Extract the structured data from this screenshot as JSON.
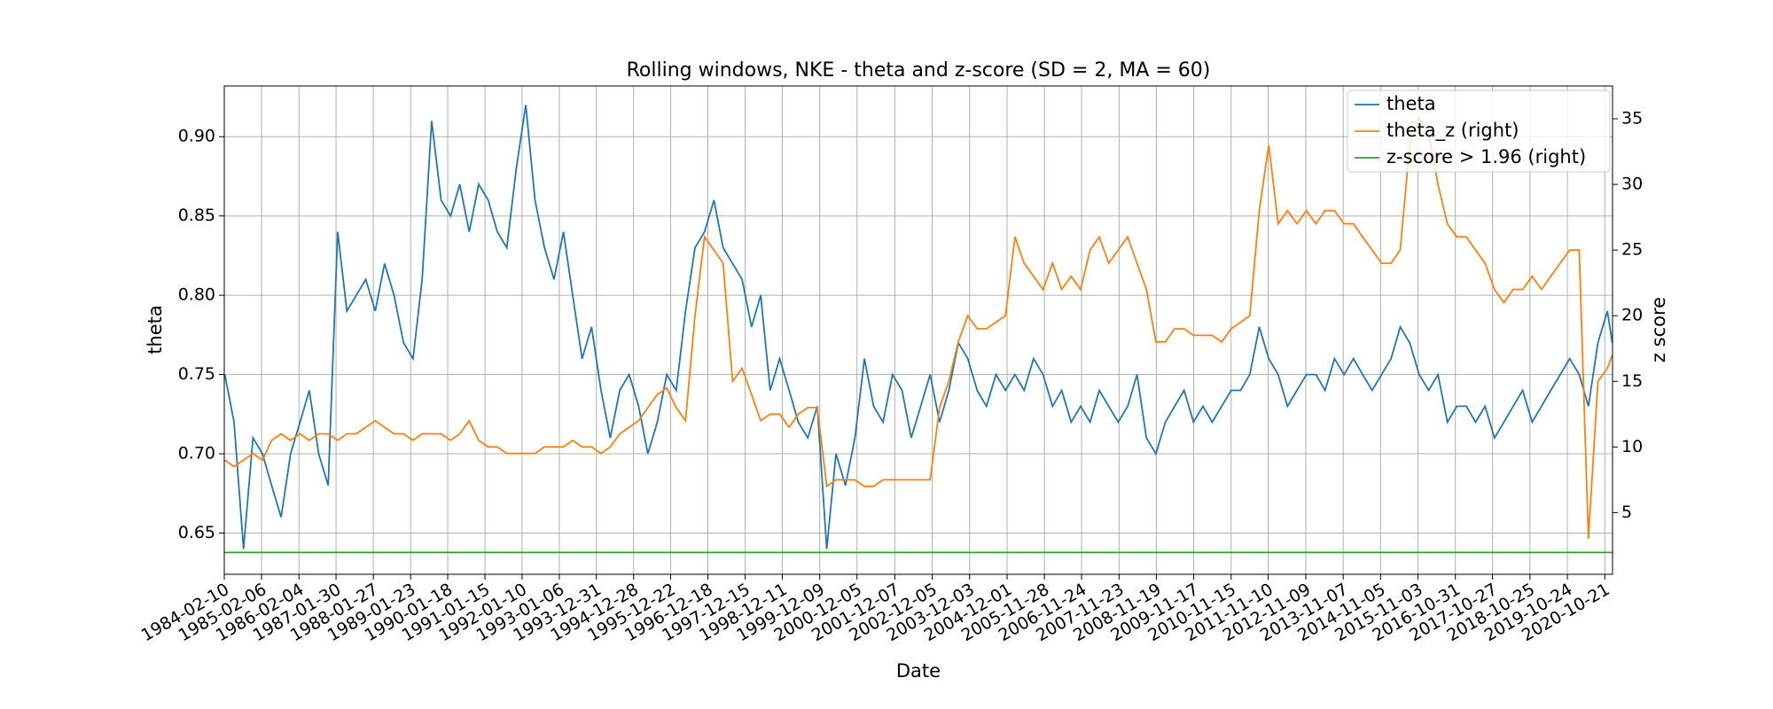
{
  "chart_data": {
    "type": "line",
    "title": "Rolling windows, NKE - theta and z-score (SD = 2, MA = 60)",
    "xlabel": "Date",
    "ylabel": "theta",
    "y2label": "z score",
    "legend": "upper right",
    "grid": true,
    "xlim": [
      "1984-02-10",
      "2021-01-04"
    ],
    "xticks": [
      "1984-02-10",
      "1985-02-06",
      "1986-02-04",
      "1987-01-30",
      "1988-01-27",
      "1989-01-23",
      "1990-01-18",
      "1991-01-15",
      "1992-01-10",
      "1993-01-06",
      "1993-12-31",
      "1994-12-28",
      "1995-12-22",
      "1996-12-18",
      "1997-12-15",
      "1998-12-11",
      "1999-12-09",
      "2000-12-05",
      "2001-12-07",
      "2002-12-05",
      "2003-12-03",
      "2004-12-01",
      "2005-11-28",
      "2006-11-24",
      "2007-11-23",
      "2008-11-19",
      "2009-11-17",
      "2010-11-15",
      "2011-11-10",
      "2012-11-09",
      "2013-11-07",
      "2014-11-05",
      "2015-11-03",
      "2016-10-31",
      "2017-10-27",
      "2018-10-25",
      "2019-10-24",
      "2020-10-21"
    ],
    "ylim": [
      0.624,
      0.932
    ],
    "yticks": [
      0.65,
      {
        "value": 0.7,
        "label": "0.70"
      },
      0.75,
      {
        "value": 0.8,
        "label": "0.80"
      },
      0.85,
      {
        "value": 0.9,
        "label": "0.90"
      }
    ],
    "y2lim": [
      0.3,
      37.5
    ],
    "y2ticks": [
      5,
      10,
      15,
      20,
      25,
      30,
      35
    ],
    "x": [
      "1984-02-15",
      "1984-05-15",
      "1984-08-15",
      "1984-11-15",
      "1985-02-15",
      "1985-05-15",
      "1985-08-15",
      "1985-11-15",
      "1986-02-15",
      "1986-05-15",
      "1986-08-15",
      "1986-11-15",
      "1987-02-15",
      "1987-05-15",
      "1987-08-15",
      "1987-11-15",
      "1988-02-15",
      "1988-05-15",
      "1988-08-15",
      "1988-11-15",
      "1989-02-15",
      "1989-05-15",
      "1989-08-15",
      "1989-11-15",
      "1990-02-15",
      "1990-05-15",
      "1990-08-15",
      "1990-11-15",
      "1991-02-15",
      "1991-05-15",
      "1991-08-15",
      "1991-11-15",
      "1992-02-15",
      "1992-05-15",
      "1992-08-15",
      "1992-11-15",
      "1993-02-15",
      "1993-05-15",
      "1993-08-15",
      "1993-11-15",
      "1994-02-15",
      "1994-05-15",
      "1994-08-15",
      "1994-11-15",
      "1995-02-15",
      "1995-05-15",
      "1995-08-15",
      "1995-11-15",
      "1996-02-15",
      "1996-05-15",
      "1996-08-15",
      "1996-11-15",
      "1997-02-15",
      "1997-05-15",
      "1997-08-15",
      "1997-11-15",
      "1998-02-15",
      "1998-05-15",
      "1998-08-15",
      "1998-11-15",
      "1999-02-15",
      "1999-05-15",
      "1999-08-15",
      "1999-11-15",
      "2000-02-15",
      "2000-05-15",
      "2000-08-15",
      "2000-11-15",
      "2001-02-15",
      "2001-05-15",
      "2001-08-15",
      "2001-11-15",
      "2002-02-15",
      "2002-05-15",
      "2002-08-15",
      "2002-11-15",
      "2003-02-15",
      "2003-05-15",
      "2003-08-15",
      "2003-11-15",
      "2004-02-15",
      "2004-05-15",
      "2004-08-15",
      "2004-11-15",
      "2005-02-15",
      "2005-05-15",
      "2005-08-15",
      "2005-11-15",
      "2006-02-15",
      "2006-05-15",
      "2006-08-15",
      "2006-11-15",
      "2007-02-15",
      "2007-05-15",
      "2007-08-15",
      "2007-11-15",
      "2008-02-15",
      "2008-05-15",
      "2008-08-15",
      "2008-11-15",
      "2009-02-15",
      "2009-05-15",
      "2009-08-15",
      "2009-11-15",
      "2010-02-15",
      "2010-05-15",
      "2010-08-15",
      "2010-11-15",
      "2011-02-15",
      "2011-05-15",
      "2011-08-15",
      "2011-11-15",
      "2012-02-15",
      "2012-05-15",
      "2012-08-15",
      "2012-11-15",
      "2013-02-15",
      "2013-05-15",
      "2013-08-15",
      "2013-11-15",
      "2014-02-15",
      "2014-05-15",
      "2014-08-15",
      "2014-11-15",
      "2015-02-15",
      "2015-05-15",
      "2015-08-15",
      "2015-11-15",
      "2016-02-15",
      "2016-05-15",
      "2016-08-15",
      "2016-11-15",
      "2017-02-15",
      "2017-05-15",
      "2017-08-15",
      "2017-11-15",
      "2018-02-15",
      "2018-05-15",
      "2018-08-15",
      "2018-11-15",
      "2019-02-15",
      "2019-05-15",
      "2019-08-15",
      "2019-11-15",
      "2020-02-15",
      "2020-05-15",
      "2020-08-15",
      "2020-11-15",
      "2021-01-01"
    ],
    "series": [
      {
        "name": "theta",
        "color": "#1f77b4",
        "values": [
          0.75,
          0.72,
          0.64,
          0.71,
          0.7,
          0.68,
          0.66,
          0.7,
          0.72,
          0.74,
          0.7,
          0.68,
          0.84,
          0.79,
          0.8,
          0.81,
          0.79,
          0.82,
          0.8,
          0.77,
          0.76,
          0.81,
          0.91,
          0.86,
          0.85,
          0.87,
          0.84,
          0.87,
          0.86,
          0.84,
          0.83,
          0.88,
          0.92,
          0.86,
          0.83,
          0.81,
          0.84,
          0.8,
          0.76,
          0.78,
          0.74,
          0.71,
          0.74,
          0.75,
          0.73,
          0.7,
          0.72,
          0.75,
          0.74,
          0.79,
          0.83,
          0.84,
          0.86,
          0.83,
          0.82,
          0.81,
          0.78,
          0.8,
          0.74,
          0.76,
          0.74,
          0.72,
          0.71,
          0.73,
          0.64,
          0.7,
          0.68,
          0.71,
          0.76,
          0.73,
          0.72,
          0.75,
          0.74,
          0.71,
          0.73,
          0.75,
          0.72,
          0.74,
          0.77,
          0.76,
          0.74,
          0.73,
          0.75,
          0.74,
          0.75,
          0.74,
          0.76,
          0.75,
          0.73,
          0.74,
          0.72,
          0.73,
          0.72,
          0.74,
          0.73,
          0.72,
          0.73,
          0.75,
          0.71,
          0.7,
          0.72,
          0.73,
          0.74,
          0.72,
          0.73,
          0.72,
          0.73,
          0.74,
          0.74,
          0.75,
          0.78,
          0.76,
          0.75,
          0.73,
          0.74,
          0.75,
          0.75,
          0.74,
          0.76,
          0.75,
          0.76,
          0.75,
          0.74,
          0.75,
          0.76,
          0.78,
          0.77,
          0.75,
          0.74,
          0.75,
          0.72,
          0.73,
          0.73,
          0.72,
          0.73,
          0.71,
          0.72,
          0.73,
          0.74,
          0.72,
          0.73,
          0.74,
          0.75,
          0.76,
          0.75,
          0.73,
          0.77,
          0.79,
          0.77
        ]
      },
      {
        "name": "theta_z (right)",
        "color": "#ff7f0e",
        "axis": "y2",
        "values": [
          9,
          8.5,
          9,
          9.5,
          9,
          10.5,
          11,
          10.5,
          11,
          10.5,
          11,
          11,
          10.5,
          11,
          11,
          11.5,
          12,
          11.5,
          11,
          11,
          10.5,
          11,
          11,
          11,
          10.5,
          11,
          12,
          10.5,
          10,
          10,
          9.5,
          9.5,
          9.5,
          9.5,
          10,
          10,
          10,
          10.5,
          10,
          10,
          9.5,
          10,
          11,
          11.5,
          12,
          13,
          14,
          14.5,
          13,
          12,
          20,
          26,
          25,
          24,
          15,
          16,
          14,
          12,
          12.5,
          12.5,
          11.5,
          12.5,
          13,
          13,
          7,
          7.5,
          7.5,
          7.5,
          7,
          7,
          7.5,
          7.5,
          7.5,
          7.5,
          7.5,
          7.5,
          13,
          15,
          18,
          20,
          19,
          19,
          19.5,
          20,
          26,
          24,
          23,
          22,
          24,
          22,
          23,
          22,
          25,
          26,
          24,
          25,
          26,
          24,
          22,
          18,
          18,
          19,
          19,
          18.5,
          18.5,
          18.5,
          18,
          19,
          19.5,
          20,
          28,
          33,
          27,
          28,
          27,
          28,
          27,
          28,
          28,
          27,
          27,
          26,
          25,
          24,
          24,
          25,
          33,
          35,
          34,
          30,
          27,
          26,
          26,
          25,
          24,
          22,
          21,
          22,
          22,
          23,
          22,
          23,
          24,
          25,
          25,
          3,
          15,
          16,
          17
        ]
      },
      {
        "name": "z-score > 1.96 (right)",
        "color": "#2ca02c",
        "axis": "y2",
        "x": [
          "1984-02-10",
          "2021-01-04"
        ],
        "values": [
          1.96,
          1.96
        ]
      }
    ]
  }
}
